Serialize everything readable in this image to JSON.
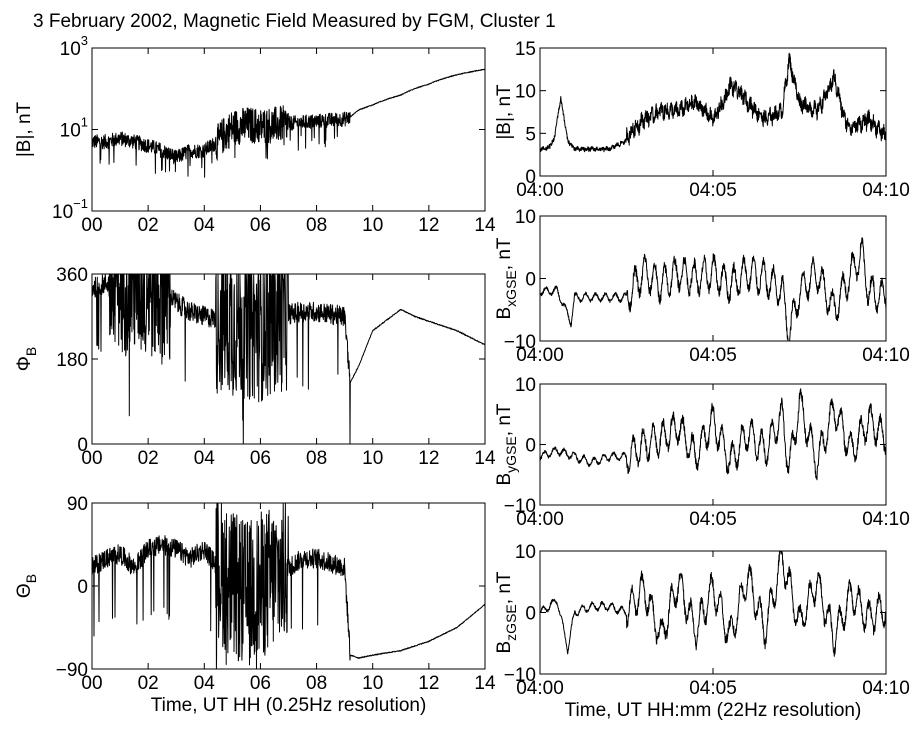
{
  "figure": {
    "title": "3 February 2002, Magnetic Field Measured by FGM, Cluster 1"
  },
  "chart_data": [
    {
      "type": "line",
      "panel": "left-1",
      "ylabel": "|B|, nT",
      "yscale": "log",
      "xlim": [
        0,
        14
      ],
      "ylim": [
        0.1,
        1000
      ],
      "xticks": [
        "00",
        "02",
        "04",
        "06",
        "08",
        "10",
        "12",
        "14"
      ],
      "yticks": [
        {
          "base": "10",
          "exp": "−1",
          "value": 0.1
        },
        {
          "base": "10",
          "exp": "1",
          "value": 10
        },
        {
          "base": "10",
          "exp": "3",
          "value": 1000
        }
      ],
      "xlabel": "",
      "series": [
        {
          "x": [
            0,
            0.5,
            1,
            1.5,
            2,
            2.5,
            3,
            3.5,
            4,
            4.5,
            5,
            5.5,
            6,
            6.5,
            7,
            7.5,
            8,
            8.5,
            9,
            9.2,
            9.5,
            10,
            11,
            12,
            13,
            14
          ],
          "y": [
            5,
            5,
            6,
            5,
            4,
            3,
            2,
            3,
            3,
            5,
            11,
            13,
            12,
            13,
            14,
            15,
            16,
            17,
            18,
            20,
            30,
            40,
            70,
            130,
            220,
            300
          ]
        }
      ]
    },
    {
      "type": "line",
      "panel": "left-2",
      "ylabel": "Φ_B",
      "xlim": [
        0,
        14
      ],
      "ylim": [
        0,
        360
      ],
      "xticks": [
        "00",
        "02",
        "04",
        "06",
        "08",
        "10",
        "12",
        "14"
      ],
      "yticks": [
        "0",
        "180",
        "360"
      ],
      "xlabel": "",
      "series": [
        {
          "x": [
            0,
            0.5,
            1,
            1.5,
            2,
            2.5,
            3,
            3.5,
            4,
            4.5,
            5,
            5.5,
            6,
            6.5,
            7,
            7.5,
            8,
            8.5,
            9,
            9.2,
            9.5,
            10,
            11,
            11.5,
            12,
            13,
            14
          ],
          "y": [
            330,
            340,
            350,
            345,
            340,
            330,
            300,
            280,
            270,
            265,
            260,
            255,
            250,
            265,
            275,
            280,
            280,
            275,
            270,
            130,
            165,
            240,
            285,
            270,
            260,
            240,
            210
          ]
        }
      ]
    },
    {
      "type": "line",
      "panel": "left-3",
      "ylabel": "Θ_B",
      "xlim": [
        0,
        14
      ],
      "ylim": [
        -90,
        90
      ],
      "xticks": [
        "00",
        "02",
        "04",
        "06",
        "08",
        "10",
        "12",
        "14"
      ],
      "yticks": [
        "−90",
        "0",
        "90"
      ],
      "xlabel": "Time, UT HH (0.25Hz resolution)",
      "series": [
        {
          "x": [
            0,
            0.5,
            1,
            1.5,
            2,
            2.5,
            3,
            3.5,
            4,
            4.5,
            5,
            5.5,
            6,
            6.5,
            7,
            7.5,
            8,
            8.5,
            9,
            9.2,
            9.5,
            10,
            11,
            12,
            13,
            14
          ],
          "y": [
            20,
            30,
            35,
            20,
            40,
            45,
            40,
            30,
            40,
            20,
            0,
            -10,
            0,
            10,
            20,
            30,
            30,
            25,
            20,
            -75,
            -78,
            -75,
            -70,
            -60,
            -45,
            -20
          ]
        }
      ]
    },
    {
      "type": "line",
      "panel": "right-1",
      "ylabel": "|B|, nT",
      "xlim": [
        0,
        10
      ],
      "ylim": [
        0,
        15
      ],
      "xticks": [
        "04:00",
        "04:05",
        "04:10"
      ],
      "yticks": [
        "0",
        "5",
        "10",
        "15"
      ],
      "xlabel": "",
      "series": [
        {
          "x": [
            0,
            0.2,
            0.4,
            0.6,
            0.8,
            1,
            1.2,
            1.5,
            2,
            2.5,
            3,
            3.5,
            4,
            4.5,
            5,
            5.3,
            5.5,
            5.8,
            6,
            6.5,
            7,
            7.2,
            7.5,
            8,
            8.3,
            8.5,
            8.8,
            9,
            9.5,
            10
          ],
          "y": [
            3,
            3,
            4,
            9,
            4,
            3,
            3,
            3,
            3,
            4,
            6,
            7,
            7,
            8,
            6,
            8,
            10,
            9,
            8,
            6,
            7,
            13,
            8,
            7,
            9,
            11,
            6,
            5,
            6,
            4
          ]
        }
      ]
    },
    {
      "type": "line",
      "panel": "right-2",
      "ylabel": "B_xGSE, nT",
      "xlim": [
        0,
        10
      ],
      "ylim": [
        -10,
        10
      ],
      "xticks": [
        "04:00",
        "04:05",
        "04:10"
      ],
      "yticks": [
        "−10",
        "0",
        "10"
      ],
      "xlabel": "",
      "series": [
        {
          "x": [
            0,
            0.5,
            0.9,
            1,
            1.5,
            2,
            2.5,
            3,
            3.5,
            4,
            4.5,
            5,
            5.5,
            6,
            6.5,
            7,
            7.2,
            7.5,
            8,
            8.5,
            9,
            9.3,
            9.5,
            10
          ],
          "y": [
            -2,
            -2,
            -7,
            -3,
            -3,
            -3,
            -3,
            1,
            -1,
            1,
            0,
            1,
            -1,
            1,
            0,
            -2,
            -9,
            -2,
            1,
            -5,
            1,
            4,
            -2,
            -3
          ]
        }
      ]
    },
    {
      "type": "line",
      "panel": "right-3",
      "ylabel": "B_yGSE, nT",
      "xlim": [
        0,
        10
      ],
      "ylim": [
        -10,
        10
      ],
      "xticks": [
        "04:00",
        "04:05",
        "04:10"
      ],
      "yticks": [
        "−10",
        "0",
        "10"
      ],
      "xlabel": "",
      "series": [
        {
          "x": [
            0,
            0.5,
            1,
            1.5,
            2,
            2.5,
            3,
            3.5,
            4,
            4.5,
            5,
            5.5,
            6,
            6.5,
            7,
            7.2,
            7.5,
            8,
            8.5,
            9,
            9.5,
            10
          ],
          "y": [
            -2,
            -1,
            -2,
            -3,
            -2,
            -2,
            0,
            1,
            3,
            -2,
            4,
            -3,
            2,
            -1,
            5,
            -4,
            7,
            -3,
            6,
            -1,
            4,
            1
          ]
        }
      ]
    },
    {
      "type": "line",
      "panel": "right-4",
      "ylabel": "B_zGSE, nT",
      "xlim": [
        0,
        10
      ],
      "ylim": [
        -10,
        10
      ],
      "xticks": [
        "04:00",
        "04:05",
        "04:10"
      ],
      "yticks": [
        "−10",
        "0",
        "10"
      ],
      "xlabel": "Time, UT HH:mm (22Hz resolution)",
      "series": [
        {
          "x": [
            0,
            0.5,
            0.8,
            1,
            1.5,
            2,
            2.5,
            3,
            3.5,
            4,
            4.5,
            5,
            5.5,
            6,
            6.5,
            7,
            7.5,
            8,
            8.5,
            9,
            9.5,
            10
          ],
          "y": [
            0,
            2,
            -6,
            0,
            1,
            1,
            0,
            4,
            -4,
            5,
            -3,
            4,
            -4,
            6,
            -3,
            9,
            -2,
            5,
            -4,
            3,
            -1,
            1
          ]
        }
      ]
    }
  ]
}
